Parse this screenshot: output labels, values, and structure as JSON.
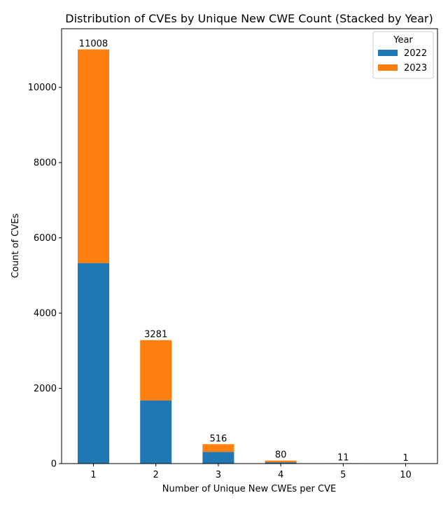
{
  "chart_data": {
    "type": "bar",
    "stacked": true,
    "title": "Distribution of CVEs by Unique New CWE Count (Stacked by Year)",
    "xlabel": "Number of Unique New CWEs per CVE",
    "ylabel": "Count of CVEs",
    "categories": [
      "1",
      "2",
      "3",
      "4",
      "5",
      "10"
    ],
    "series": [
      {
        "name": "2022",
        "color": "#1f77b4",
        "values": [
          5330,
          1680,
          310,
          35,
          8,
          1
        ]
      },
      {
        "name": "2023",
        "color": "#ff7f0e",
        "values": [
          5678,
          1601,
          206,
          45,
          3,
          0
        ]
      }
    ],
    "totals": [
      "11008",
      "3281",
      "516",
      "80",
      "11",
      "1"
    ],
    "ylim": [
      0,
      11558
    ],
    "yticks": [
      0,
      2000,
      4000,
      6000,
      8000,
      10000
    ],
    "grid": false,
    "legend": {
      "title": "Year",
      "position": "top-right"
    }
  }
}
